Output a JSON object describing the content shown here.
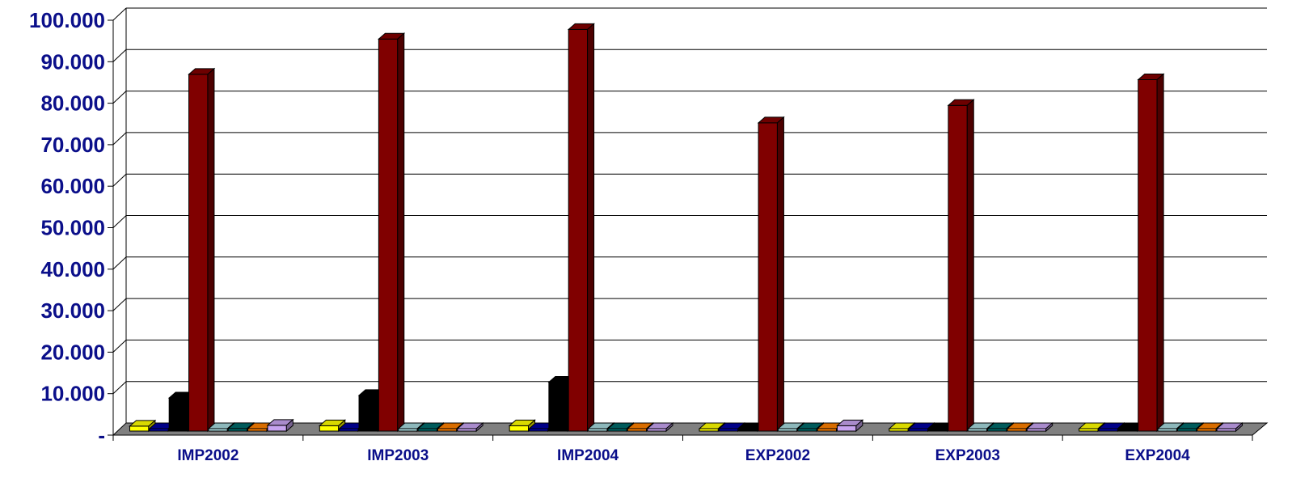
{
  "chart_data": {
    "type": "bar",
    "style": "3d-clustered-column",
    "categories": [
      "IMP2002",
      "IMP2003",
      "IMP2004",
      "EXP2002",
      "EXP2003",
      "EXP2004"
    ],
    "ylim": [
      0,
      100000
    ],
    "yticks": [
      {
        "value": 0,
        "label": "-"
      },
      {
        "value": 10000,
        "label": "10.000"
      },
      {
        "value": 20000,
        "label": "20.000"
      },
      {
        "value": 30000,
        "label": "30.000"
      },
      {
        "value": 40000,
        "label": "40.000"
      },
      {
        "value": 50000,
        "label": "50.000"
      },
      {
        "value": 60000,
        "label": "60.000"
      },
      {
        "value": 70000,
        "label": "70.000"
      },
      {
        "value": 80000,
        "label": "80.000"
      },
      {
        "value": 90000,
        "label": "90.000"
      },
      {
        "value": 100000,
        "label": "100.000"
      }
    ],
    "grid": true,
    "legend": "none",
    "series": [
      {
        "color": "#ffff00",
        "values": [
          1200,
          1300,
          1300,
          200,
          100,
          100
        ]
      },
      {
        "color": "#0000a0",
        "values": [
          400,
          400,
          400,
          100,
          100,
          100
        ]
      },
      {
        "color": "#000000",
        "values": [
          8000,
          8600,
          11800,
          300,
          300,
          300
        ]
      },
      {
        "color": "#800000",
        "values": [
          86000,
          94500,
          96800,
          74300,
          78500,
          84700
        ]
      },
      {
        "color": "#a6d8dc",
        "values": [
          300,
          300,
          300,
          100,
          100,
          100
        ]
      },
      {
        "color": "#006b6b",
        "values": [
          600,
          500,
          500,
          200,
          100,
          100
        ]
      },
      {
        "color": "#ff8000",
        "values": [
          200,
          100,
          100,
          200,
          100,
          100
        ]
      },
      {
        "color": "#c7a3f0",
        "values": [
          1400,
          200,
          200,
          1300,
          100,
          100
        ]
      }
    ]
  }
}
